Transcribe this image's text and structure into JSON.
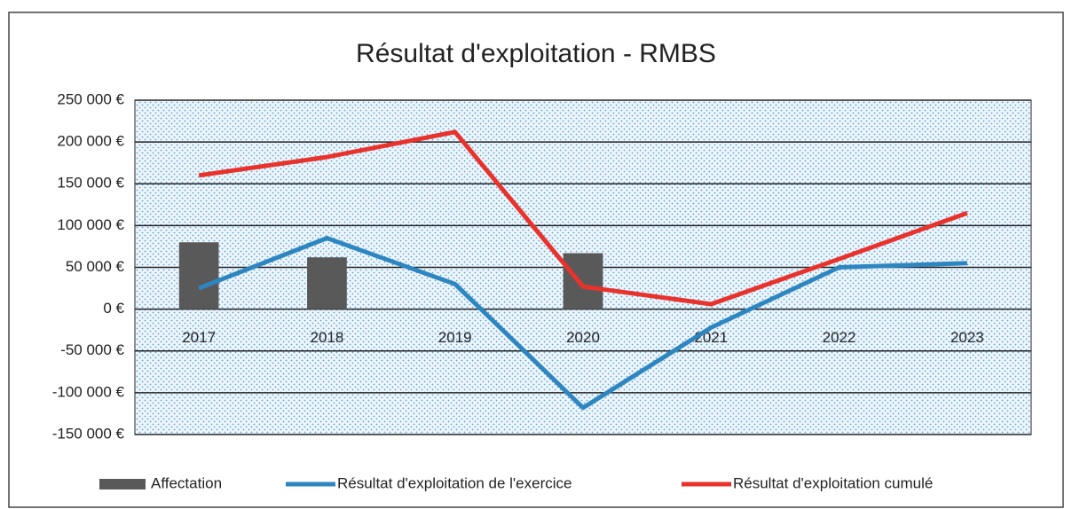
{
  "chart_data": {
    "type": "combo",
    "title": "Résultat d'exploitation - RMBS",
    "categories": [
      "2017",
      "2018",
      "2019",
      "2020",
      "2021",
      "2022",
      "2023"
    ],
    "series": [
      {
        "name": "Affectation",
        "type": "bar",
        "color": "#595959",
        "values": [
          80000,
          62000,
          null,
          67000,
          null,
          null,
          null
        ]
      },
      {
        "name": "Résultat d'exploitation de l'exercice",
        "type": "line",
        "color": "#2e86c1",
        "values": [
          25000,
          85000,
          30000,
          -118000,
          -22000,
          50000,
          55000
        ]
      },
      {
        "name": "Résultat d'exploitation cumulé",
        "type": "line",
        "color": "#e8322b",
        "values": [
          160000,
          182000,
          212000,
          27000,
          6000,
          60000,
          115000
        ]
      }
    ],
    "ylim": [
      -150000,
      250000
    ],
    "yticks": [
      {
        "value": -150000,
        "label": "-150 000 €"
      },
      {
        "value": -100000,
        "label": "-100 000 €"
      },
      {
        "value": -50000,
        "label": "-50 000 €"
      },
      {
        "value": 0,
        "label": "0 €"
      },
      {
        "value": 50000,
        "label": "50 000 €"
      },
      {
        "value": 100000,
        "label": "100 000 €"
      },
      {
        "value": 150000,
        "label": "150 000 €"
      },
      {
        "value": 200000,
        "label": "200 000 €"
      },
      {
        "value": 250000,
        "label": "250 000 €"
      }
    ],
    "grid": true,
    "legend": "bottom"
  }
}
